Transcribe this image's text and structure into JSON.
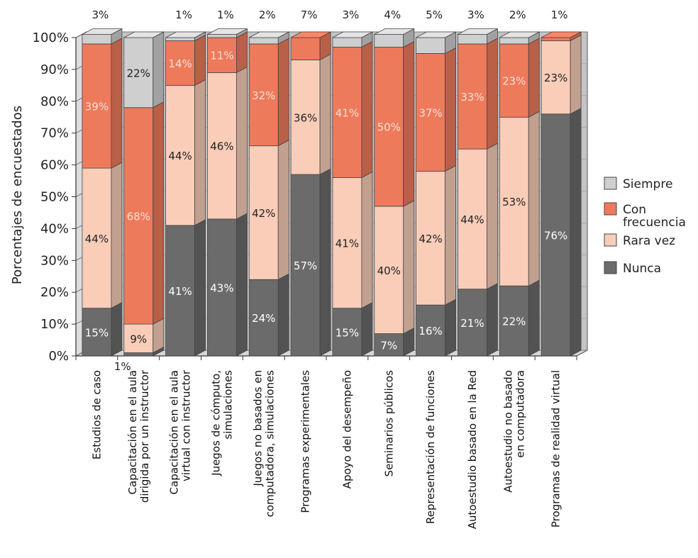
{
  "chart_data": {
    "type": "bar",
    "stacked": true,
    "three_d": true,
    "ylabel": "Porcentajes de encuestados",
    "ylim": [
      0,
      100
    ],
    "y_ticks": [
      "0%",
      "10%",
      "20%",
      "30%",
      "40%",
      "50%",
      "60%",
      "70%",
      "80%",
      "90%",
      "100%"
    ],
    "legend_position": "right",
    "categories": [
      "Estudios de caso",
      "Capacitación en el aula dirigida por un instructor",
      "Capacitación en el aula virtual con instructor",
      "Juegos de cómputo, simulaciones",
      "Juegos no basados en computadora, simulaciones",
      "Programas experimentales",
      "Apoyo del desempeño",
      "Seminarios públicos",
      "Representación de funciones",
      "Autoestudio basado en la Red",
      "Autoestudio no basado en computadora",
      "Programas de realidad virtual"
    ],
    "category_lines": [
      [
        "Estudios de caso"
      ],
      [
        "Capacitación en el aula",
        "dirigida por un instructor"
      ],
      [
        "Capacitación en el aula",
        "virtual con instructor"
      ],
      [
        "Juegos de cómputo,",
        "simulaciones"
      ],
      [
        "Juegos no basados en",
        "computadora, simulaciones"
      ],
      [
        "Programas experimentales"
      ],
      [
        "Apoyo del desempeño"
      ],
      [
        "Seminarios públicos"
      ],
      [
        "Representación de funciones"
      ],
      [
        "Autoestudio basado en la Red"
      ],
      [
        "Autoestudio no basado",
        "en computadora"
      ],
      [
        "Programas de realidad virtual"
      ]
    ],
    "series": [
      {
        "name": "Nunca",
        "color": "#6b6b6b",
        "label_color": "#ffffff",
        "values": [
          15,
          1,
          41,
          43,
          24,
          57,
          15,
          7,
          16,
          21,
          22,
          76
        ],
        "labels": [
          "15%",
          "1%",
          "41%",
          "43%",
          "24%",
          "57%",
          "15%",
          "7%",
          "16%",
          "21%",
          "22%",
          "76%"
        ]
      },
      {
        "name": "Rara vez",
        "color": "#f9cdb8",
        "label_color": "#222222",
        "values": [
          44,
          9,
          44,
          46,
          42,
          36,
          41,
          40,
          42,
          44,
          53,
          23
        ],
        "labels": [
          "44%",
          "9%",
          "44%",
          "46%",
          "42%",
          "36%",
          "41%",
          "40%",
          "42%",
          "44%",
          "53%",
          "23%"
        ]
      },
      {
        "name": "Con frecuencia",
        "color": "#ee7a5c",
        "label_color": "#fde0d4",
        "values": [
          39,
          68,
          14,
          11,
          32,
          7,
          41,
          50,
          37,
          33,
          23,
          1
        ],
        "labels": [
          "39%",
          "68%",
          "14%",
          "11%",
          "32%",
          "",
          "41%",
          "50%",
          "37%",
          "33%",
          "23%",
          ""
        ]
      },
      {
        "name": "Siempre",
        "color": "#cfcfcf",
        "label_color": "#222222",
        "values": [
          3,
          22,
          1,
          1,
          2,
          0,
          3,
          4,
          5,
          3,
          2,
          0
        ],
        "labels": [
          "",
          "22%",
          "",
          "",
          "",
          "",
          "",
          "",
          "",
          "",
          "",
          ""
        ]
      }
    ],
    "top_labels": [
      "3%",
      "",
      "1%",
      "1%",
      "2%",
      "7%",
      "3%",
      "4%",
      "5%",
      "3%",
      "2%",
      "1%"
    ],
    "legend": [
      {
        "lines": [
          "Siempre"
        ],
        "color": "#cfcfcf"
      },
      {
        "lines": [
          "Con",
          "frecuencia"
        ],
        "color": "#ee7a5c"
      },
      {
        "lines": [
          "Rara vez"
        ],
        "color": "#f9cdb8"
      },
      {
        "lines": [
          "Nunca"
        ],
        "color": "#6b6b6b"
      }
    ]
  }
}
